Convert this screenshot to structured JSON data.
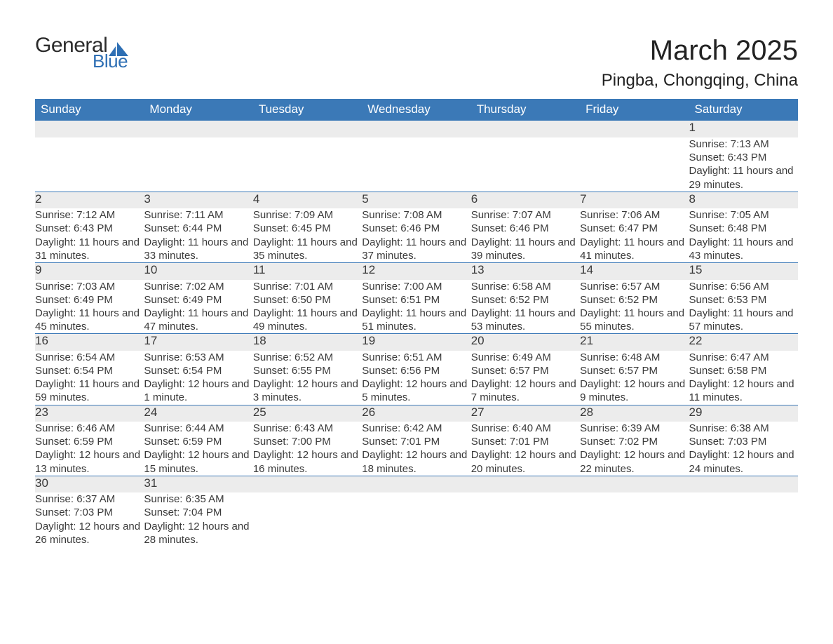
{
  "brand": {
    "word1": "General",
    "word2": "Blue",
    "accent_color": "#2e6fb4",
    "text_color": "#2b2b2b"
  },
  "header": {
    "month_title": "March 2025",
    "location": "Pingba, Chongqing, China",
    "title_fontsize": 40,
    "location_fontsize": 24
  },
  "calendar": {
    "header_bg": "#3b79b7",
    "header_text_color": "#ffffff",
    "daynum_bg": "#ececec",
    "row_border_color": "#3b79b7",
    "text_color": "#3a3a3a",
    "day_labels": [
      "Sunday",
      "Monday",
      "Tuesday",
      "Wednesday",
      "Thursday",
      "Friday",
      "Saturday"
    ],
    "weeks": [
      {
        "days": [
          null,
          null,
          null,
          null,
          null,
          null,
          {
            "n": "1",
            "sunrise": "Sunrise: 7:13 AM",
            "sunset": "Sunset: 6:43 PM",
            "daylight": "Daylight: 11 hours and 29 minutes."
          }
        ]
      },
      {
        "days": [
          {
            "n": "2",
            "sunrise": "Sunrise: 7:12 AM",
            "sunset": "Sunset: 6:43 PM",
            "daylight": "Daylight: 11 hours and 31 minutes."
          },
          {
            "n": "3",
            "sunrise": "Sunrise: 7:11 AM",
            "sunset": "Sunset: 6:44 PM",
            "daylight": "Daylight: 11 hours and 33 minutes."
          },
          {
            "n": "4",
            "sunrise": "Sunrise: 7:09 AM",
            "sunset": "Sunset: 6:45 PM",
            "daylight": "Daylight: 11 hours and 35 minutes."
          },
          {
            "n": "5",
            "sunrise": "Sunrise: 7:08 AM",
            "sunset": "Sunset: 6:46 PM",
            "daylight": "Daylight: 11 hours and 37 minutes."
          },
          {
            "n": "6",
            "sunrise": "Sunrise: 7:07 AM",
            "sunset": "Sunset: 6:46 PM",
            "daylight": "Daylight: 11 hours and 39 minutes."
          },
          {
            "n": "7",
            "sunrise": "Sunrise: 7:06 AM",
            "sunset": "Sunset: 6:47 PM",
            "daylight": "Daylight: 11 hours and 41 minutes."
          },
          {
            "n": "8",
            "sunrise": "Sunrise: 7:05 AM",
            "sunset": "Sunset: 6:48 PM",
            "daylight": "Daylight: 11 hours and 43 minutes."
          }
        ]
      },
      {
        "days": [
          {
            "n": "9",
            "sunrise": "Sunrise: 7:03 AM",
            "sunset": "Sunset: 6:49 PM",
            "daylight": "Daylight: 11 hours and 45 minutes."
          },
          {
            "n": "10",
            "sunrise": "Sunrise: 7:02 AM",
            "sunset": "Sunset: 6:49 PM",
            "daylight": "Daylight: 11 hours and 47 minutes."
          },
          {
            "n": "11",
            "sunrise": "Sunrise: 7:01 AM",
            "sunset": "Sunset: 6:50 PM",
            "daylight": "Daylight: 11 hours and 49 minutes."
          },
          {
            "n": "12",
            "sunrise": "Sunrise: 7:00 AM",
            "sunset": "Sunset: 6:51 PM",
            "daylight": "Daylight: 11 hours and 51 minutes."
          },
          {
            "n": "13",
            "sunrise": "Sunrise: 6:58 AM",
            "sunset": "Sunset: 6:52 PM",
            "daylight": "Daylight: 11 hours and 53 minutes."
          },
          {
            "n": "14",
            "sunrise": "Sunrise: 6:57 AM",
            "sunset": "Sunset: 6:52 PM",
            "daylight": "Daylight: 11 hours and 55 minutes."
          },
          {
            "n": "15",
            "sunrise": "Sunrise: 6:56 AM",
            "sunset": "Sunset: 6:53 PM",
            "daylight": "Daylight: 11 hours and 57 minutes."
          }
        ]
      },
      {
        "days": [
          {
            "n": "16",
            "sunrise": "Sunrise: 6:54 AM",
            "sunset": "Sunset: 6:54 PM",
            "daylight": "Daylight: 11 hours and 59 minutes."
          },
          {
            "n": "17",
            "sunrise": "Sunrise: 6:53 AM",
            "sunset": "Sunset: 6:54 PM",
            "daylight": "Daylight: 12 hours and 1 minute."
          },
          {
            "n": "18",
            "sunrise": "Sunrise: 6:52 AM",
            "sunset": "Sunset: 6:55 PM",
            "daylight": "Daylight: 12 hours and 3 minutes."
          },
          {
            "n": "19",
            "sunrise": "Sunrise: 6:51 AM",
            "sunset": "Sunset: 6:56 PM",
            "daylight": "Daylight: 12 hours and 5 minutes."
          },
          {
            "n": "20",
            "sunrise": "Sunrise: 6:49 AM",
            "sunset": "Sunset: 6:57 PM",
            "daylight": "Daylight: 12 hours and 7 minutes."
          },
          {
            "n": "21",
            "sunrise": "Sunrise: 6:48 AM",
            "sunset": "Sunset: 6:57 PM",
            "daylight": "Daylight: 12 hours and 9 minutes."
          },
          {
            "n": "22",
            "sunrise": "Sunrise: 6:47 AM",
            "sunset": "Sunset: 6:58 PM",
            "daylight": "Daylight: 12 hours and 11 minutes."
          }
        ]
      },
      {
        "days": [
          {
            "n": "23",
            "sunrise": "Sunrise: 6:46 AM",
            "sunset": "Sunset: 6:59 PM",
            "daylight": "Daylight: 12 hours and 13 minutes."
          },
          {
            "n": "24",
            "sunrise": "Sunrise: 6:44 AM",
            "sunset": "Sunset: 6:59 PM",
            "daylight": "Daylight: 12 hours and 15 minutes."
          },
          {
            "n": "25",
            "sunrise": "Sunrise: 6:43 AM",
            "sunset": "Sunset: 7:00 PM",
            "daylight": "Daylight: 12 hours and 16 minutes."
          },
          {
            "n": "26",
            "sunrise": "Sunrise: 6:42 AM",
            "sunset": "Sunset: 7:01 PM",
            "daylight": "Daylight: 12 hours and 18 minutes."
          },
          {
            "n": "27",
            "sunrise": "Sunrise: 6:40 AM",
            "sunset": "Sunset: 7:01 PM",
            "daylight": "Daylight: 12 hours and 20 minutes."
          },
          {
            "n": "28",
            "sunrise": "Sunrise: 6:39 AM",
            "sunset": "Sunset: 7:02 PM",
            "daylight": "Daylight: 12 hours and 22 minutes."
          },
          {
            "n": "29",
            "sunrise": "Sunrise: 6:38 AM",
            "sunset": "Sunset: 7:03 PM",
            "daylight": "Daylight: 12 hours and 24 minutes."
          }
        ]
      },
      {
        "days": [
          {
            "n": "30",
            "sunrise": "Sunrise: 6:37 AM",
            "sunset": "Sunset: 7:03 PM",
            "daylight": "Daylight: 12 hours and 26 minutes."
          },
          {
            "n": "31",
            "sunrise": "Sunrise: 6:35 AM",
            "sunset": "Sunset: 7:04 PM",
            "daylight": "Daylight: 12 hours and 28 minutes."
          },
          null,
          null,
          null,
          null,
          null
        ]
      }
    ]
  }
}
